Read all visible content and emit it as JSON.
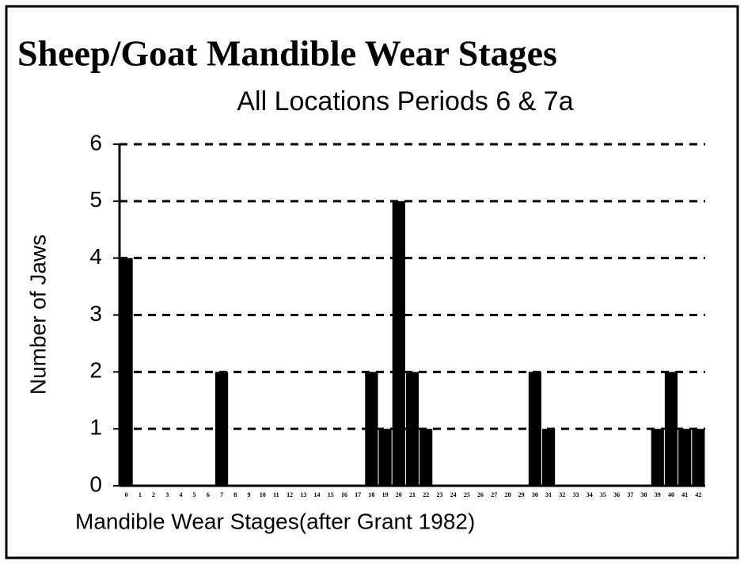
{
  "chart_data": {
    "type": "bar",
    "title": "Sheep/Goat Mandible Wear Stages",
    "subtitle": "All Locations Periods 6 & 7a",
    "x_label": "Mandible Wear Stages(after Grant 1982)",
    "y_label": "Number of Jaws",
    "categories": [
      "0",
      "1",
      "2",
      "3",
      "4",
      "5",
      "6",
      "7",
      "8",
      "9",
      "10",
      "11",
      "12",
      "13",
      "14",
      "15",
      "16",
      "17",
      "18",
      "19",
      "20",
      "21",
      "22",
      "23",
      "24",
      "25",
      "26",
      "27",
      "28",
      "29",
      "30",
      "31",
      "32",
      "33",
      "34",
      "35",
      "36",
      "37",
      "38",
      "39",
      "40",
      "41",
      "42"
    ],
    "values": [
      4,
      0,
      0,
      0,
      0,
      0,
      0,
      2,
      0,
      0,
      0,
      0,
      0,
      0,
      0,
      0,
      0,
      0,
      2,
      1,
      5,
      2,
      1,
      0,
      0,
      0,
      0,
      0,
      0,
      0,
      2,
      1,
      0,
      0,
      0,
      0,
      0,
      0,
      0,
      1,
      2,
      1,
      1
    ],
    "color": "#000000",
    "ylim": [
      0,
      6
    ],
    "yticks": [
      0,
      1,
      2,
      3,
      4,
      5,
      6
    ],
    "grid": true
  }
}
